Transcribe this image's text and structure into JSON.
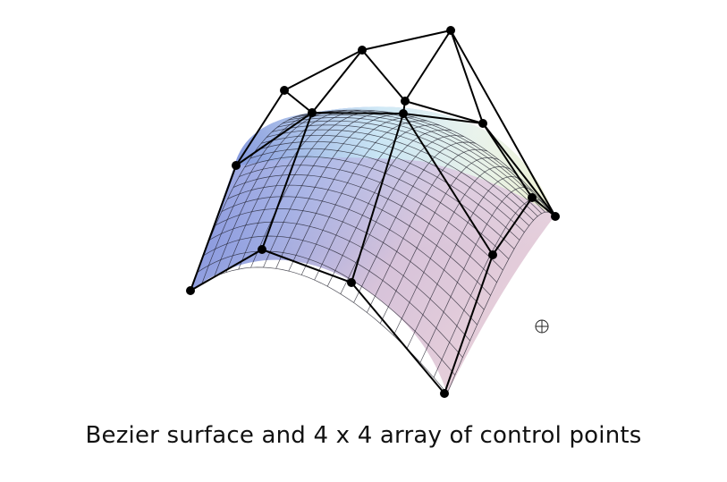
{
  "caption": "Bezier surface and 4 x 4 array of control points",
  "icons": {
    "cursor": "crosshair-circle-icon"
  },
  "colors": {
    "surface_blue": "#6f7fd8",
    "surface_lightblue": "#b7def2",
    "surface_pink": "#e7c3d2",
    "surface_mauve": "#b9a7cc",
    "surface_green": "#e6f2c8",
    "mesh_line": "#1a1a1a",
    "control_net": "#000000"
  }
}
